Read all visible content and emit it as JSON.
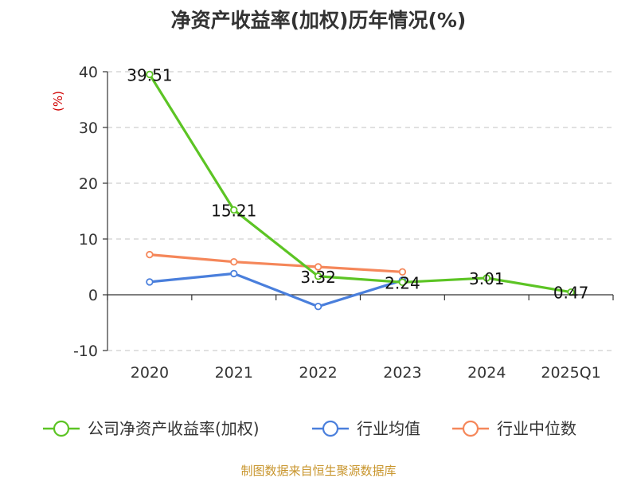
{
  "chart_data": {
    "type": "line",
    "title": "净资产收益率(加权)历年情况(%)",
    "ylabel": "(%)",
    "xlabel": "",
    "categories": [
      "2020",
      "2021",
      "2022",
      "2023",
      "2024",
      "2025Q1"
    ],
    "ylim": [
      -10,
      40
    ],
    "yticks": [
      -10,
      0,
      10,
      20,
      30,
      40
    ],
    "grid": true,
    "legend_position": "bottom",
    "series": [
      {
        "name": "公司净资产收益率(加权)",
        "color": "#5cc424",
        "values": [
          39.51,
          15.21,
          3.32,
          2.24,
          3.01,
          0.47
        ],
        "labels": [
          "39.51",
          "15.21",
          "3.32",
          "2.24",
          "3.01",
          "0.47"
        ]
      },
      {
        "name": "行业均值",
        "color": "#4a7fdc",
        "values": [
          2.3,
          3.8,
          -2.1,
          2.6,
          null,
          null
        ]
      },
      {
        "name": "行业中位数",
        "color": "#f5875a",
        "values": [
          7.2,
          5.9,
          5.0,
          4.1,
          null,
          null
        ]
      }
    ],
    "source": "制图数据来自恒生聚源数据库"
  }
}
